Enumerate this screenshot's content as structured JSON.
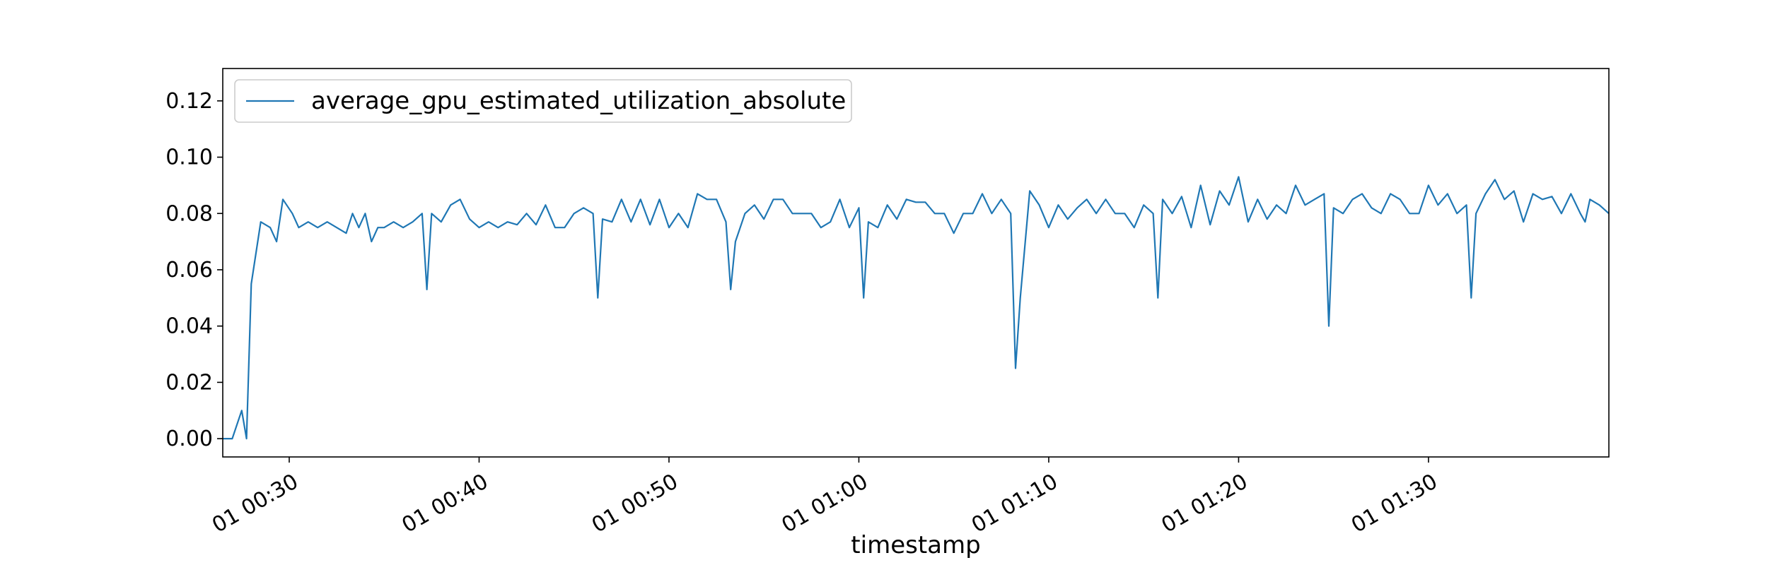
{
  "chart_data": {
    "type": "line",
    "xlabel": "timestamp",
    "ylabel": "",
    "xlim": [
      "00:26:30",
      "01:39:30"
    ],
    "ylim": [
      -0.0065,
      0.1315
    ],
    "x_ticks": [
      "00:30",
      "00:40",
      "00:50",
      "01:00",
      "01:10",
      "01:20",
      "01:30"
    ],
    "x_tick_labels": [
      "01 00:30",
      "01 00:40",
      "01 00:50",
      "01 01:00",
      "01 01:10",
      "01 01:20",
      "01 01:30"
    ],
    "y_ticks": [
      0.0,
      0.02,
      0.04,
      0.06,
      0.08,
      0.1,
      0.12
    ],
    "y_tick_labels": [
      "0.00",
      "0.02",
      "0.04",
      "0.06",
      "0.08",
      "0.10",
      "0.12"
    ],
    "legend_position": "top-left",
    "grid": false,
    "series": [
      {
        "name": "average_gpu_estimated_utilization_absolute",
        "color": "#1f77b4",
        "points": [
          [
            "00:26:30",
            0.0
          ],
          [
            "00:27:00",
            0.0
          ],
          [
            "00:27:30",
            0.01
          ],
          [
            "00:27:45",
            0.0
          ],
          [
            "00:28:00",
            0.055
          ],
          [
            "00:28:30",
            0.077
          ],
          [
            "00:29:00",
            0.075
          ],
          [
            "00:29:20",
            0.07
          ],
          [
            "00:29:40",
            0.085
          ],
          [
            "00:30:10",
            0.08
          ],
          [
            "00:30:30",
            0.075
          ],
          [
            "00:31:00",
            0.077
          ],
          [
            "00:31:30",
            0.075
          ],
          [
            "00:32:00",
            0.077
          ],
          [
            "00:32:30",
            0.075
          ],
          [
            "00:33:00",
            0.073
          ],
          [
            "00:33:20",
            0.08
          ],
          [
            "00:33:40",
            0.075
          ],
          [
            "00:34:00",
            0.08
          ],
          [
            "00:34:20",
            0.07
          ],
          [
            "00:34:40",
            0.075
          ],
          [
            "00:35:00",
            0.075
          ],
          [
            "00:35:30",
            0.077
          ],
          [
            "00:36:00",
            0.075
          ],
          [
            "00:36:30",
            0.077
          ],
          [
            "00:37:00",
            0.08
          ],
          [
            "00:37:15",
            0.053
          ],
          [
            "00:37:30",
            0.08
          ],
          [
            "00:38:00",
            0.077
          ],
          [
            "00:38:30",
            0.083
          ],
          [
            "00:39:00",
            0.085
          ],
          [
            "00:39:30",
            0.078
          ],
          [
            "00:40:00",
            0.075
          ],
          [
            "00:40:30",
            0.077
          ],
          [
            "00:41:00",
            0.075
          ],
          [
            "00:41:30",
            0.077
          ],
          [
            "00:42:00",
            0.076
          ],
          [
            "00:42:30",
            0.08
          ],
          [
            "00:43:00",
            0.076
          ],
          [
            "00:43:30",
            0.083
          ],
          [
            "00:44:00",
            0.075
          ],
          [
            "00:44:30",
            0.075
          ],
          [
            "00:45:00",
            0.08
          ],
          [
            "00:45:30",
            0.082
          ],
          [
            "00:46:00",
            0.08
          ],
          [
            "00:46:15",
            0.05
          ],
          [
            "00:46:30",
            0.078
          ],
          [
            "00:47:00",
            0.077
          ],
          [
            "00:47:30",
            0.085
          ],
          [
            "00:48:00",
            0.077
          ],
          [
            "00:48:30",
            0.085
          ],
          [
            "00:49:00",
            0.076
          ],
          [
            "00:49:30",
            0.085
          ],
          [
            "00:50:00",
            0.075
          ],
          [
            "00:50:30",
            0.08
          ],
          [
            "00:51:00",
            0.075
          ],
          [
            "00:51:30",
            0.087
          ],
          [
            "00:52:00",
            0.085
          ],
          [
            "00:52:30",
            0.085
          ],
          [
            "00:53:00",
            0.077
          ],
          [
            "00:53:15",
            0.053
          ],
          [
            "00:53:30",
            0.07
          ],
          [
            "00:54:00",
            0.08
          ],
          [
            "00:54:30",
            0.083
          ],
          [
            "00:55:00",
            0.078
          ],
          [
            "00:55:30",
            0.085
          ],
          [
            "00:56:00",
            0.085
          ],
          [
            "00:56:30",
            0.08
          ],
          [
            "00:57:00",
            0.08
          ],
          [
            "00:57:30",
            0.08
          ],
          [
            "00:58:00",
            0.075
          ],
          [
            "00:58:30",
            0.077
          ],
          [
            "00:59:00",
            0.085
          ],
          [
            "00:59:30",
            0.075
          ],
          [
            "01:00:00",
            0.082
          ],
          [
            "01:00:15",
            0.05
          ],
          [
            "01:00:30",
            0.077
          ],
          [
            "01:01:00",
            0.075
          ],
          [
            "01:01:30",
            0.083
          ],
          [
            "01:02:00",
            0.078
          ],
          [
            "01:02:30",
            0.085
          ],
          [
            "01:03:00",
            0.084
          ],
          [
            "01:03:30",
            0.084
          ],
          [
            "01:04:00",
            0.08
          ],
          [
            "01:04:30",
            0.08
          ],
          [
            "01:05:00",
            0.073
          ],
          [
            "01:05:30",
            0.08
          ],
          [
            "01:06:00",
            0.08
          ],
          [
            "01:06:30",
            0.087
          ],
          [
            "01:07:00",
            0.08
          ],
          [
            "01:07:30",
            0.085
          ],
          [
            "01:08:00",
            0.08
          ],
          [
            "01:08:15",
            0.025
          ],
          [
            "01:08:30",
            0.05
          ],
          [
            "01:09:00",
            0.088
          ],
          [
            "01:09:30",
            0.083
          ],
          [
            "01:10:00",
            0.075
          ],
          [
            "01:10:30",
            0.083
          ],
          [
            "01:11:00",
            0.078
          ],
          [
            "01:11:30",
            0.082
          ],
          [
            "01:12:00",
            0.085
          ],
          [
            "01:12:30",
            0.08
          ],
          [
            "01:13:00",
            0.085
          ],
          [
            "01:13:30",
            0.08
          ],
          [
            "01:14:00",
            0.08
          ],
          [
            "01:14:30",
            0.075
          ],
          [
            "01:15:00",
            0.083
          ],
          [
            "01:15:30",
            0.08
          ],
          [
            "01:15:45",
            0.05
          ],
          [
            "01:16:00",
            0.085
          ],
          [
            "01:16:30",
            0.08
          ],
          [
            "01:17:00",
            0.086
          ],
          [
            "01:17:30",
            0.075
          ],
          [
            "01:18:00",
            0.09
          ],
          [
            "01:18:30",
            0.076
          ],
          [
            "01:19:00",
            0.088
          ],
          [
            "01:19:30",
            0.083
          ],
          [
            "01:20:00",
            0.093
          ],
          [
            "01:20:30",
            0.077
          ],
          [
            "01:21:00",
            0.085
          ],
          [
            "01:21:30",
            0.078
          ],
          [
            "01:22:00",
            0.083
          ],
          [
            "01:22:30",
            0.08
          ],
          [
            "01:23:00",
            0.09
          ],
          [
            "01:23:30",
            0.083
          ],
          [
            "01:24:00",
            0.085
          ],
          [
            "01:24:30",
            0.087
          ],
          [
            "01:24:45",
            0.04
          ],
          [
            "01:25:00",
            0.082
          ],
          [
            "01:25:30",
            0.08
          ],
          [
            "01:26:00",
            0.085
          ],
          [
            "01:26:30",
            0.087
          ],
          [
            "01:27:00",
            0.082
          ],
          [
            "01:27:30",
            0.08
          ],
          [
            "01:28:00",
            0.087
          ],
          [
            "01:28:30",
            0.085
          ],
          [
            "01:29:00",
            0.08
          ],
          [
            "01:29:30",
            0.08
          ],
          [
            "01:30:00",
            0.09
          ],
          [
            "01:30:30",
            0.083
          ],
          [
            "01:31:00",
            0.087
          ],
          [
            "01:31:30",
            0.08
          ],
          [
            "01:32:00",
            0.083
          ],
          [
            "01:32:15",
            0.05
          ],
          [
            "01:32:30",
            0.08
          ],
          [
            "01:33:00",
            0.087
          ],
          [
            "01:33:30",
            0.092
          ],
          [
            "01:34:00",
            0.085
          ],
          [
            "01:34:30",
            0.088
          ],
          [
            "01:35:00",
            0.077
          ],
          [
            "01:35:30",
            0.087
          ],
          [
            "01:36:00",
            0.085
          ],
          [
            "01:36:30",
            0.086
          ],
          [
            "01:37:00",
            0.08
          ],
          [
            "01:37:30",
            0.087
          ],
          [
            "01:38:00",
            0.08
          ],
          [
            "01:38:15",
            0.077
          ],
          [
            "01:38:30",
            0.085
          ],
          [
            "01:39:00",
            0.083
          ],
          [
            "01:39:30",
            0.08
          ]
        ]
      }
    ]
  }
}
